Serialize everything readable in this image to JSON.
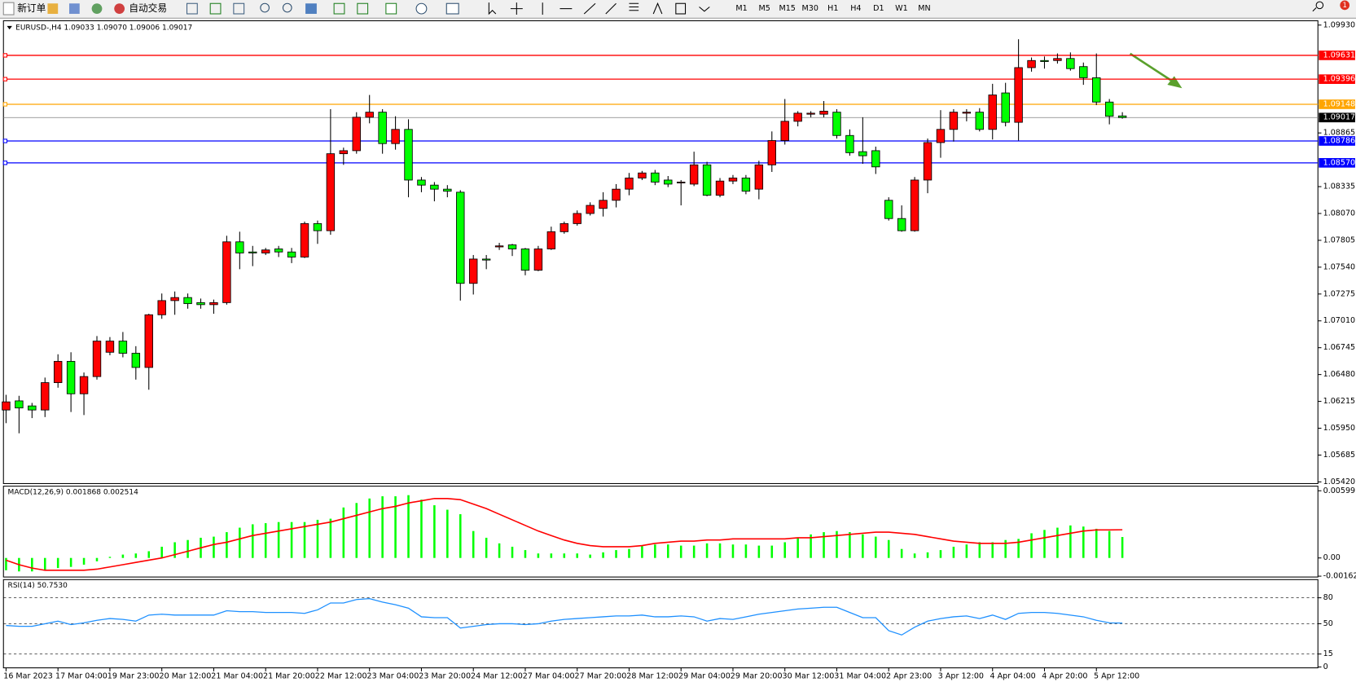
{
  "toolbar": {
    "new_order": "新订单",
    "auto_trading": "自动交易",
    "timeframes": [
      "M1",
      "M5",
      "M15",
      "M30",
      "H1",
      "H4",
      "D1",
      "W1",
      "MN"
    ],
    "badge": "1"
  },
  "chart_data": [
    {
      "type": "candlestick",
      "title": "EURUSD-,H4  1.09033 1.09070 1.09006 1.09017",
      "categories": [
        "16 Mar 2023",
        null,
        null,
        null,
        "17 Mar 04:00",
        null,
        null,
        null,
        "19 Mar 23:00",
        null,
        null,
        null,
        "20 Mar 12:00",
        null,
        null,
        null,
        "21 Mar 04:00",
        null,
        null,
        null,
        "21 Mar 20:00",
        null,
        null,
        null,
        "22 Mar 12:00",
        null,
        null,
        null,
        "23 Mar 04:00",
        null,
        null,
        null,
        "23 Mar 20:00",
        null,
        null,
        null,
        "24 Mar 12:00",
        null,
        null,
        null,
        "27 Mar 04:00",
        null,
        null,
        null,
        "27 Mar 20:00",
        null,
        null,
        null,
        "28 Mar 12:00",
        null,
        null,
        null,
        "29 Mar 04:00",
        null,
        null,
        null,
        "29 Mar 20:00",
        null,
        null,
        null,
        "30 Mar 12:00",
        null,
        null,
        null,
        "31 Mar 04:00",
        null,
        null,
        null,
        "2 Apr 23:00",
        null,
        null,
        null,
        "3 Apr 12:00",
        null,
        null,
        null,
        "4 Apr 04:00",
        null,
        null,
        null,
        "4 Apr 20:00",
        null,
        null,
        null,
        "5 Apr 12:00",
        null,
        null
      ],
      "open": [
        1.0613,
        1.0622,
        1.0617,
        1.0613,
        1.064,
        1.0661,
        1.0629,
        1.0646,
        1.067,
        1.0681,
        1.0669,
        1.0655,
        1.0707,
        1.0721,
        1.0724,
        1.0719,
        1.0717,
        1.0719,
        1.0779,
        1.0769,
        1.0768,
        1.0772,
        1.0769,
        1.0764,
        1.0797,
        1.079,
        1.0866,
        1.0869,
        1.0902,
        1.0907,
        1.0876,
        1.089,
        1.084,
        1.0835,
        1.0831,
        1.0828,
        1.0738,
        1.0762,
        1.0774,
        1.0776,
        1.0772,
        1.0751,
        1.0772,
        1.0789,
        1.0797,
        1.0807,
        1.0812,
        1.082,
        1.0831,
        1.0842,
        1.0847,
        1.084,
        1.0838,
        1.0836,
        1.0855,
        1.0825,
        1.0839,
        1.0842,
        1.0831,
        1.0855,
        1.0879,
        1.0898,
        1.0905,
        1.0905,
        1.0907,
        1.0884,
        1.0868,
        1.0869,
        1.082,
        1.0802,
        1.079,
        1.084,
        1.0877,
        1.089,
        1.0906,
        1.0907,
        1.089,
        1.0926,
        1.0897,
        1.0951,
        1.0958,
        1.0958,
        1.096,
        1.0952,
        1.0941,
        1.0917,
        1.09033
      ],
      "high": [
        1.0628,
        1.0627,
        1.062,
        1.0645,
        1.0668,
        1.067,
        1.065,
        1.0686,
        1.0685,
        1.069,
        1.0676,
        1.0708,
        1.0728,
        1.073,
        1.0728,
        1.0723,
        1.0722,
        1.0785,
        1.0789,
        1.0775,
        1.0773,
        1.0775,
        1.0773,
        1.0799,
        1.08,
        1.091,
        1.0872,
        1.0907,
        1.0924,
        1.091,
        1.0903,
        1.09,
        1.0843,
        1.0838,
        1.0835,
        1.083,
        1.0766,
        1.0766,
        1.0778,
        1.0777,
        1.0773,
        1.0775,
        1.0794,
        1.0799,
        1.081,
        1.0818,
        1.0828,
        1.0836,
        1.0847,
        1.0849,
        1.085,
        1.0844,
        1.084,
        1.0868,
        1.0858,
        1.0842,
        1.0845,
        1.0845,
        1.0859,
        1.0888,
        1.092,
        1.0908,
        1.0908,
        1.0918,
        1.091,
        1.089,
        1.0902,
        1.0873,
        1.0823,
        1.0815,
        1.0843,
        1.0881,
        1.0909,
        1.091,
        1.091,
        1.0911,
        1.0935,
        1.0936,
        1.0979,
        1.0961,
        1.0962,
        1.0965,
        1.0966,
        1.0956,
        1.0965,
        1.092,
        1.0907
      ],
      "low": [
        1.06,
        1.059,
        1.0605,
        1.0606,
        1.0635,
        1.0611,
        1.0608,
        1.0643,
        1.0667,
        1.0665,
        1.0643,
        1.0633,
        1.0703,
        1.0707,
        1.0713,
        1.0713,
        1.0708,
        1.0717,
        1.0752,
        1.0755,
        1.0766,
        1.0764,
        1.0758,
        1.0763,
        1.0777,
        1.0786,
        1.0855,
        1.0866,
        1.0896,
        1.0866,
        1.087,
        1.0823,
        1.0828,
        1.0819,
        1.0823,
        1.0721,
        1.0727,
        1.0752,
        1.0771,
        1.0765,
        1.0746,
        1.075,
        1.0771,
        1.0787,
        1.0795,
        1.0805,
        1.0804,
        1.0813,
        1.0825,
        1.084,
        1.0835,
        1.0833,
        1.0815,
        1.0834,
        1.0824,
        1.0823,
        1.0836,
        1.0826,
        1.0821,
        1.0848,
        1.0875,
        1.0893,
        1.0902,
        1.0902,
        1.0881,
        1.0864,
        1.0856,
        1.0846,
        1.08,
        1.0789,
        1.0789,
        1.0827,
        1.0862,
        1.0878,
        1.0898,
        1.0888,
        1.088,
        1.0893,
        1.0879,
        1.0947,
        1.095,
        1.0955,
        1.0948,
        1.0934,
        1.0914,
        1.0895,
        1.09006
      ],
      "close": [
        1.0621,
        1.0615,
        1.0613,
        1.064,
        1.0661,
        1.0629,
        1.0646,
        1.0681,
        1.0681,
        1.0669,
        1.0655,
        1.0707,
        1.0721,
        1.0724,
        1.0718,
        1.0717,
        1.0719,
        1.0779,
        1.0768,
        1.0768,
        1.0771,
        1.0769,
        1.0764,
        1.0797,
        1.079,
        1.0866,
        1.0869,
        1.0902,
        1.0907,
        1.0876,
        1.089,
        1.084,
        1.0835,
        1.0831,
        1.0829,
        1.0738,
        1.0762,
        1.0761,
        1.0775,
        1.0772,
        1.0751,
        1.0772,
        1.0789,
        1.0797,
        1.0807,
        1.0815,
        1.082,
        1.0831,
        1.0842,
        1.0847,
        1.0838,
        1.0836,
        1.0838,
        1.0855,
        1.0825,
        1.0839,
        1.0842,
        1.0829,
        1.0855,
        1.0879,
        1.0898,
        1.0906,
        1.0906,
        1.0908,
        1.0884,
        1.0867,
        1.0864,
        1.0853,
        1.0802,
        1.079,
        1.084,
        1.0877,
        1.089,
        1.0907,
        1.0907,
        1.089,
        1.0924,
        1.0897,
        1.0951,
        1.0958,
        1.0957,
        1.096,
        1.095,
        1.0941,
        1.0917,
        1.0903,
        1.09017
      ],
      "up_color": "#ff0000",
      "down_color": "#00ff00",
      "ylim": [
        1.05412,
        1.09964
      ],
      "yticks": [
        {
          "value": 1.0993,
          "label": "1.09930"
        },
        1.08865,
        1.08335,
        {
          "value": 1.0807,
          "label": "1.08070"
        },
        1.07805,
        {
          "value": 1.0754,
          "label": "1.07540"
        },
        1.07275,
        {
          "value": 1.0701,
          "label": "1.07010"
        },
        1.06745,
        {
          "value": 1.0648,
          "label": "1.06480"
        },
        1.06215,
        {
          "value": 1.0595,
          "label": "1.05950"
        },
        1.05685,
        {
          "value": 1.0542,
          "label": "1.05420"
        }
      ],
      "hlines": [
        {
          "value": 1.09631,
          "label": "1.09631",
          "color": "#ff0000"
        },
        {
          "value": 1.09396,
          "label": "1.09396",
          "color": "#ff0000"
        },
        {
          "value": 1.09148,
          "label": "1.09148",
          "color": "#ffa500"
        },
        {
          "value": 1.08786,
          "label": "1.08786",
          "color": "#0000ff"
        },
        {
          "value": {
            "value": 1.0857,
            "label": "1.08570"
          },
          "color": "#0000ff"
        }
      ],
      "last_price": {
        "value": 1.09017,
        "label": "1.09017",
        "color": "#808080"
      }
    },
    {
      "type": "macd",
      "title": "MACD(12,26,9) 0.001868 0.002514",
      "series": [
        {
          "color": "#00ff00",
          "values": [
            -0.0011,
            -0.0012,
            -0.0012,
            -0.0011,
            -0.0009,
            -0.0008,
            -0.0006,
            -0.0003,
            0.0001,
            0.0003,
            0.0004,
            0.0006,
            0.001,
            0.0014,
            0.0016,
            0.0018,
            0.0019,
            0.0023,
            0.0027,
            0.003,
            0.0031,
            0.0032,
            0.0032,
            0.0032,
            0.0034,
            0.0035,
            0.0045,
            0.0049,
            0.0053,
            0.0055,
            0.0055,
            0.0056,
            0.0052,
            0.0047,
            0.0043,
            0.0039,
            0.0024,
            0.0018,
            0.0013,
            0.001,
            0.0007,
            0.0004,
            0.0004,
            0.0004,
            0.0004,
            0.0003,
            0.0005,
            0.0007,
            0.0008,
            0.0011,
            0.0012,
            0.0012,
            0.0011,
            0.0011,
            0.0013,
            0.0013,
            0.0012,
            0.0012,
            0.0011,
            0.0011,
            0.0014,
            0.0018,
            0.0021,
            0.0023,
            0.0024,
            0.0023,
            0.0021,
            0.0019,
            0.0016,
            0.0008,
            0.0004,
            0.0005,
            0.0007,
            0.001,
            0.0012,
            0.0014,
            0.0014,
            0.0016,
            0.0017,
            0.0022,
            0.0025,
            0.0027,
            0.0029,
            0.0028,
            0.0026,
            0.0024,
            0.001868
          ]
        },
        {
          "color": "#ff0000",
          "values": [
            -0.0002,
            -0.0006,
            -0.0009,
            -0.0011,
            -0.0011,
            -0.0011,
            -0.0011,
            -0.001,
            -0.0008,
            -0.0006,
            -0.0004,
            -0.0002,
            0.0,
            0.0003,
            0.0006,
            0.0009,
            0.0012,
            0.0014,
            0.0017,
            0.002,
            0.0022,
            0.0024,
            0.0026,
            0.0028,
            0.003,
            0.0032,
            0.0035,
            0.0038,
            0.0041,
            0.0044,
            0.0046,
            0.0049,
            0.0051,
            0.0053,
            0.0053,
            0.0052,
            0.0048,
            0.0044,
            0.0039,
            0.0034,
            0.0029,
            0.0024,
            0.002,
            0.0016,
            0.0013,
            0.0011,
            0.001,
            0.001,
            0.001,
            0.0011,
            0.0013,
            0.0014,
            0.0015,
            0.0015,
            0.0016,
            0.0016,
            0.0017,
            0.0017,
            0.0017,
            0.0017,
            0.0017,
            0.0018,
            0.0018,
            0.0019,
            0.002,
            0.0021,
            0.0022,
            0.0023,
            0.0023,
            0.0022,
            0.0021,
            0.0019,
            0.0017,
            0.0015,
            0.0014,
            0.0013,
            0.0013,
            0.0013,
            0.0014,
            0.0016,
            0.0018,
            0.002,
            0.0022,
            0.0024,
            0.0025,
            0.0025,
            0.002514
          ]
        }
      ],
      "ylim": [
        -0.0017,
        0.0064
      ],
      "yticks": [
        0.00599,
        {
          "value": 0,
          "label": "0.00"
        },
        -0.001625
      ]
    },
    {
      "type": "rsi",
      "title": "RSI(14) 50.7530",
      "color": "#1e90ff",
      "values": [
        48,
        47,
        47,
        50,
        53,
        49,
        51,
        54,
        56,
        55,
        53,
        60,
        61,
        60,
        60,
        60,
        60,
        65,
        64,
        64,
        63,
        63,
        63,
        62,
        66,
        74,
        74,
        78,
        79,
        75,
        72,
        68,
        58,
        57,
        57,
        45,
        47,
        49,
        50,
        50,
        49,
        50,
        53,
        55,
        56,
        57,
        58,
        59,
        59,
        60,
        58,
        58,
        59,
        58,
        53,
        56,
        55,
        58,
        61,
        63,
        65,
        67,
        68,
        69,
        69,
        63,
        57,
        57,
        42,
        37,
        46,
        53,
        56,
        58,
        59,
        56,
        60,
        55,
        62,
        63,
        63,
        62,
        60,
        58,
        54,
        51,
        50.753
      ],
      "ylim": [
        0,
        100
      ],
      "yticks": [
        80,
        50,
        15,
        0
      ],
      "grid": "dashed"
    }
  ]
}
